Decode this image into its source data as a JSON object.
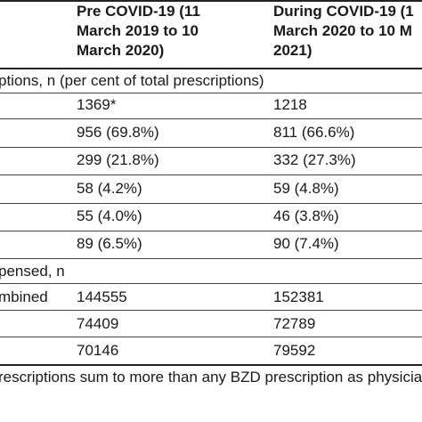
{
  "header": {
    "col1_lines": [
      "Pre COVID-19 (11",
      "March 2019 to 10",
      "March 2020)"
    ],
    "col2_lines": [
      "During COVID-19 (1",
      "March 2020 to 10 M",
      "2021)"
    ]
  },
  "section1": {
    "label": "ptions, n (per cent of total prescriptions)",
    "rows": [
      {
        "pre": "1369*",
        "during": "1218"
      },
      {
        "pre": "956 (69.8%)",
        "during": "811 (66.6%)"
      },
      {
        "pre": "299 (21.8%)",
        "during": "332 (27.3%)"
      },
      {
        "pre": "58 (4.2%)",
        "during": "59 (4.8%)"
      },
      {
        "pre": "55 (4.0%)",
        "during": "46 (3.8%)"
      },
      {
        "pre": "89 (6.5%)",
        "during": "90 (7.4%)"
      }
    ]
  },
  "section2": {
    "label": "pensed, n",
    "rows": [
      {
        "label": "mbined",
        "pre": "144555",
        "during": "152381"
      },
      {
        "label": "",
        "pre": "74409",
        "during": "72789"
      },
      {
        "label": "",
        "pre": "70146",
        "during": "79592"
      }
    ]
  },
  "footnote": "rescriptions sum to more than any BZD prescription as physician"
}
